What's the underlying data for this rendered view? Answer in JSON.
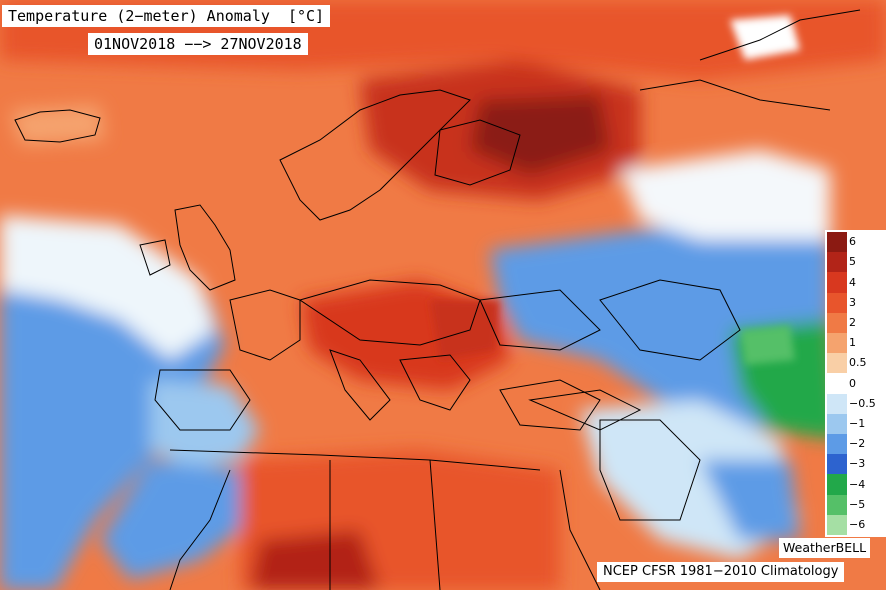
{
  "map": {
    "title": "Temperature (2−meter) Anomaly  [°C]",
    "period": "01NOV2018 −−> 27NOV2018",
    "brand": "WeatherBELL",
    "climatology": "NCEP CFSR 1981−2010 Climatology",
    "region": "Europe",
    "colors": {
      "ocean_warm": "#f07a45",
      "land_strong_warm": "#c0392b",
      "neutral": "#ffffff",
      "cold": "#3f7fdc",
      "very_cold": "#2fa84a",
      "border": "#000000"
    }
  },
  "legend": {
    "labels": [
      "6",
      "5",
      "4",
      "3",
      "2",
      "1",
      "0.5",
      "0",
      "−0.5",
      "−1",
      "−2",
      "−3",
      "−4",
      "−5",
      "−6"
    ],
    "colors": [
      "#8b1a12",
      "#b22418",
      "#d8381f",
      "#e8552c",
      "#f07a45",
      "#f5a36e",
      "#f9cfa6",
      "#ffffff",
      "#cfe6f7",
      "#9cc8ef",
      "#5d9be6",
      "#2d63cf",
      "#22a84a",
      "#55c068",
      "#a5dfa4"
    ]
  }
}
